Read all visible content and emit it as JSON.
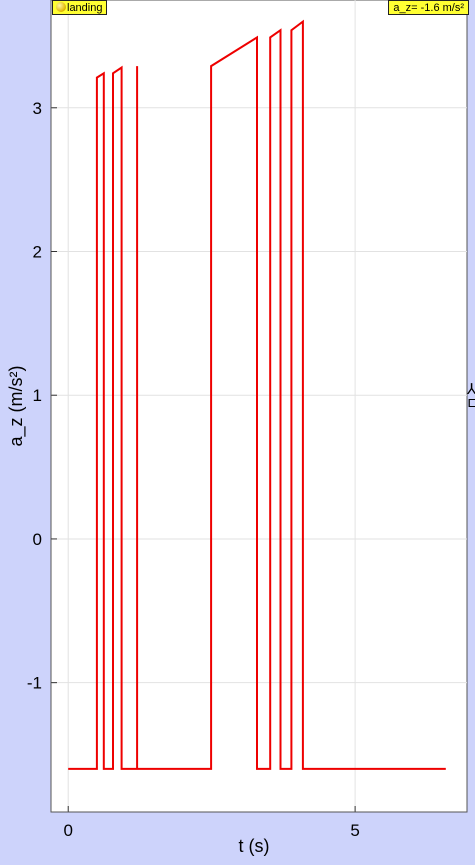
{
  "legend": {
    "label": "landing",
    "icon": "yellow-ball-icon"
  },
  "readout": {
    "text": "a_z= -1.6 m/s²"
  },
  "colors": {
    "series": "#ee0000",
    "plot_bg": "#ffffff",
    "page_bg": "#cdd3fb",
    "grid": "#e2e2e2",
    "badge": "#ffff33"
  },
  "chart_data": {
    "type": "line",
    "title": "",
    "xlabel": "t (s)",
    "ylabel": "a_z (m/s²)",
    "xlim": [
      -0.3,
      6.95
    ],
    "ylim": [
      -1.9,
      3.75
    ],
    "xticks": [
      0,
      5
    ],
    "yticks": [
      -1,
      0,
      1,
      2,
      3
    ],
    "grid": true,
    "series": [
      {
        "x": [
          0,
          0.5,
          0.5,
          0.62,
          0.62,
          0.78,
          0.78,
          0.78,
          0.93,
          0.93,
          0.97,
          0.97,
          1.2,
          1.2,
          1.2,
          1.2,
          1.23,
          1.23,
          2.49,
          2.49,
          3.29,
          3.29,
          3.52,
          3.52,
          3.7,
          3.7,
          3.89,
          3.89,
          4.09,
          4.09,
          6.58
        ],
        "y": [
          -1.6,
          -1.6,
          3.21,
          3.24,
          -1.6,
          -1.6,
          3.24,
          3.24,
          3.28,
          -1.6,
          -1.6,
          -1.6,
          -1.6,
          3.29,
          3.29,
          -1.6,
          -1.6,
          -1.6,
          -1.6,
          3.29,
          3.49,
          -1.6,
          -1.6,
          3.49,
          3.54,
          -1.6,
          -1.6,
          3.54,
          3.6,
          -1.6,
          -1.6
        ]
      }
    ]
  }
}
